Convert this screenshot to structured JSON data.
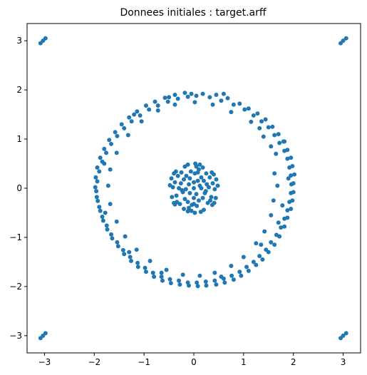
{
  "chart_data": {
    "type": "scatter",
    "title": "Donnees initiales : target.arff",
    "xlabel": "",
    "ylabel": "",
    "xlim": [
      -3.35,
      3.35
    ],
    "ylim": [
      -3.35,
      3.35
    ],
    "xticks": [
      -3,
      -2,
      -1,
      0,
      1,
      2,
      3
    ],
    "yticks": [
      -3,
      -2,
      -1,
      0,
      1,
      2,
      3
    ],
    "tick_labels": {
      "x": [
        "−3",
        "−2",
        "−1",
        "0",
        "1",
        "2",
        "3"
      ],
      "y": [
        "−3",
        "−2",
        "−1",
        "0",
        "1",
        "2",
        "3"
      ]
    },
    "grid": false,
    "legend": "none",
    "marker_color": "#1f77b4",
    "series": [
      {
        "points": [
          [
            -3.08,
            2.95
          ],
          [
            -3.03,
            3.0
          ],
          [
            -2.98,
            3.05
          ],
          [
            2.95,
            2.95
          ],
          [
            3.0,
            3.0
          ],
          [
            3.06,
            3.05
          ],
          [
            -3.08,
            -3.05
          ],
          [
            -3.03,
            -3.0
          ],
          [
            -2.98,
            -2.95
          ],
          [
            2.95,
            -3.05
          ],
          [
            3.0,
            -3.0
          ],
          [
            3.06,
            -2.95
          ],
          [
            -0.05,
            1.92
          ],
          [
            0.05,
            1.88
          ],
          [
            0.18,
            1.92
          ],
          [
            0.32,
            1.85
          ],
          [
            0.45,
            1.9
          ],
          [
            0.55,
            1.78
          ],
          [
            0.68,
            1.83
          ],
          [
            0.8,
            1.7
          ],
          [
            0.92,
            1.72
          ],
          [
            1.02,
            1.6
          ],
          [
            1.1,
            1.62
          ],
          [
            1.2,
            1.48
          ],
          [
            1.28,
            1.52
          ],
          [
            1.36,
            1.36
          ],
          [
            1.44,
            1.4
          ],
          [
            1.5,
            1.24
          ],
          [
            1.58,
            1.25
          ],
          [
            1.62,
            1.08
          ],
          [
            1.7,
            1.1
          ],
          [
            1.72,
            0.92
          ],
          [
            1.8,
            0.95
          ],
          [
            1.82,
            0.76
          ],
          [
            1.88,
            0.78
          ],
          [
            1.88,
            0.6
          ],
          [
            1.95,
            0.62
          ],
          [
            1.92,
            0.42
          ],
          [
            1.98,
            0.45
          ],
          [
            1.95,
            0.26
          ],
          [
            2.02,
            0.28
          ],
          [
            1.96,
            0.08
          ],
          [
            2.0,
            0.1
          ],
          [
            1.95,
            -0.1
          ],
          [
            2.0,
            -0.08
          ],
          [
            1.92,
            -0.28
          ],
          [
            1.98,
            -0.25
          ],
          [
            1.88,
            -0.45
          ],
          [
            1.95,
            -0.42
          ],
          [
            1.82,
            -0.62
          ],
          [
            1.88,
            -0.6
          ],
          [
            1.75,
            -0.8
          ],
          [
            1.82,
            -0.78
          ],
          [
            1.66,
            -0.95
          ],
          [
            1.72,
            -0.98
          ],
          [
            1.55,
            -1.1
          ],
          [
            1.62,
            -1.15
          ],
          [
            1.45,
            -1.25
          ],
          [
            1.5,
            -1.3
          ],
          [
            1.32,
            -1.38
          ],
          [
            1.38,
            -1.45
          ],
          [
            1.2,
            -1.5
          ],
          [
            1.25,
            -1.56
          ],
          [
            1.06,
            -1.6
          ],
          [
            1.1,
            -1.68
          ],
          [
            0.92,
            -1.7
          ],
          [
            0.95,
            -1.78
          ],
          [
            0.76,
            -1.78
          ],
          [
            0.8,
            -1.86
          ],
          [
            0.6,
            -1.84
          ],
          [
            0.62,
            -1.92
          ],
          [
            0.42,
            -1.88
          ],
          [
            0.45,
            -1.96
          ],
          [
            0.24,
            -1.9
          ],
          [
            0.25,
            -1.98
          ],
          [
            0.06,
            -1.92
          ],
          [
            0.08,
            -1.99
          ],
          [
            -0.12,
            -1.92
          ],
          [
            -0.1,
            -1.98
          ],
          [
            -0.3,
            -1.88
          ],
          [
            -0.28,
            -1.96
          ],
          [
            -0.48,
            -1.85
          ],
          [
            -0.46,
            -1.93
          ],
          [
            -0.65,
            -1.8
          ],
          [
            -0.63,
            -1.88
          ],
          [
            -0.82,
            -1.72
          ],
          [
            -0.8,
            -1.8
          ],
          [
            -0.98,
            -1.62
          ],
          [
            -0.96,
            -1.7
          ],
          [
            -1.13,
            -1.52
          ],
          [
            -1.12,
            -1.6
          ],
          [
            -1.28,
            -1.4
          ],
          [
            -1.26,
            -1.48
          ],
          [
            -1.42,
            -1.26
          ],
          [
            -1.4,
            -1.34
          ],
          [
            -1.54,
            -1.1
          ],
          [
            -1.52,
            -1.18
          ],
          [
            -1.66,
            -0.94
          ],
          [
            -1.64,
            -1.02
          ],
          [
            -1.75,
            -0.76
          ],
          [
            -1.74,
            -0.84
          ],
          [
            -1.84,
            -0.58
          ],
          [
            -1.82,
            -0.66
          ],
          [
            -1.9,
            -0.38
          ],
          [
            -1.88,
            -0.46
          ],
          [
            -1.95,
            -0.18
          ],
          [
            -1.93,
            -0.26
          ],
          [
            -1.98,
            0.02
          ],
          [
            -1.96,
            -0.06
          ],
          [
            -1.97,
            0.22
          ],
          [
            -1.94,
            0.14
          ],
          [
            -1.94,
            0.42
          ],
          [
            -1.9,
            0.34
          ],
          [
            -1.88,
            0.62
          ],
          [
            -1.84,
            0.54
          ],
          [
            -1.8,
            0.8
          ],
          [
            -1.76,
            0.72
          ],
          [
            -1.7,
            0.98
          ],
          [
            -1.66,
            0.9
          ],
          [
            -1.58,
            1.14
          ],
          [
            -1.54,
            1.06
          ],
          [
            -1.45,
            1.3
          ],
          [
            -1.4,
            1.22
          ],
          [
            -1.3,
            1.44
          ],
          [
            -1.25,
            1.36
          ],
          [
            -1.14,
            1.56
          ],
          [
            -1.08,
            1.48
          ],
          [
            -0.96,
            1.68
          ],
          [
            -0.9,
            1.6
          ],
          [
            -0.78,
            1.76
          ],
          [
            -0.72,
            1.68
          ],
          [
            -0.58,
            1.84
          ],
          [
            -0.52,
            1.76
          ],
          [
            -0.38,
            1.9
          ],
          [
            -0.32,
            1.82
          ],
          [
            -0.18,
            1.94
          ],
          [
            -0.12,
            1.86
          ],
          [
            1.15,
            1.35
          ],
          [
            1.4,
            1.05
          ],
          [
            1.55,
            0.85
          ],
          [
            1.65,
            0.7
          ],
          [
            1.62,
            0.3
          ],
          [
            1.68,
            0.05
          ],
          [
            1.6,
            -0.25
          ],
          [
            1.55,
            -0.55
          ],
          [
            1.42,
            -0.88
          ],
          [
            1.25,
            -1.12
          ],
          [
            1.0,
            -1.4
          ],
          [
            0.75,
            -1.58
          ],
          [
            0.42,
            -1.72
          ],
          [
            0.12,
            -1.78
          ],
          [
            -0.22,
            -1.76
          ],
          [
            -0.55,
            -1.66
          ],
          [
            -0.88,
            -1.48
          ],
          [
            -1.15,
            -1.25
          ],
          [
            -1.38,
            -0.98
          ],
          [
            -1.55,
            -0.68
          ],
          [
            -1.68,
            -0.32
          ],
          [
            -1.72,
            0.05
          ],
          [
            -1.68,
            0.38
          ],
          [
            -1.55,
            0.72
          ],
          [
            -1.32,
            1.08
          ],
          [
            -1.05,
            1.36
          ],
          [
            -0.72,
            1.58
          ],
          [
            -0.38,
            1.7
          ],
          [
            0.02,
            1.75
          ],
          [
            0.38,
            1.7
          ],
          [
            0.75,
            1.55
          ],
          [
            1.32,
            1.22
          ],
          [
            1.82,
            0.95
          ],
          [
            1.9,
            0.2
          ],
          [
            1.78,
            -0.35
          ],
          [
            1.7,
            -0.7
          ],
          [
            1.35,
            -1.15
          ],
          [
            0.55,
            -1.8
          ],
          [
            -0.65,
            -1.72
          ],
          [
            -1.3,
            -1.3
          ],
          [
            -1.78,
            -0.5
          ],
          [
            -1.8,
            0.5
          ],
          [
            -1.2,
            1.5
          ],
          [
            -0.5,
            1.85
          ],
          [
            0.6,
            1.92
          ],
          [
            0.0,
            0.0
          ],
          [
            0.12,
            0.05
          ],
          [
            -0.1,
            0.08
          ],
          [
            0.05,
            -0.12
          ],
          [
            -0.08,
            -0.1
          ],
          [
            0.2,
            0.15
          ],
          [
            -0.2,
            0.18
          ],
          [
            0.18,
            -0.2
          ],
          [
            -0.18,
            -0.22
          ],
          [
            0.3,
            0.02
          ],
          [
            -0.3,
            0.0
          ],
          [
            0.02,
            0.3
          ],
          [
            0.0,
            -0.32
          ],
          [
            0.38,
            0.1
          ],
          [
            -0.38,
            0.12
          ],
          [
            0.1,
            0.38
          ],
          [
            -0.1,
            -0.4
          ],
          [
            0.35,
            -0.18
          ],
          [
            -0.35,
            -0.15
          ],
          [
            0.25,
            0.3
          ],
          [
            -0.25,
            0.32
          ],
          [
            0.28,
            -0.3
          ],
          [
            -0.28,
            -0.32
          ],
          [
            0.42,
            -0.02
          ],
          [
            -0.42,
            0.02
          ],
          [
            0.05,
            0.44
          ],
          [
            -0.05,
            -0.46
          ],
          [
            0.15,
            0.22
          ],
          [
            -0.15,
            0.25
          ],
          [
            0.22,
            -0.1
          ],
          [
            -0.22,
            -0.08
          ],
          [
            0.08,
            0.15
          ],
          [
            -0.08,
            0.2
          ],
          [
            0.1,
            -0.25
          ],
          [
            -0.12,
            -0.28
          ],
          [
            0.32,
            0.22
          ],
          [
            -0.32,
            0.25
          ],
          [
            0.33,
            -0.25
          ],
          [
            -0.34,
            -0.28
          ],
          [
            0.45,
            0.18
          ],
          [
            -0.45,
            0.2
          ],
          [
            0.44,
            -0.2
          ],
          [
            -0.44,
            -0.18
          ],
          [
            0.18,
            0.42
          ],
          [
            -0.18,
            0.44
          ],
          [
            0.2,
            -0.44
          ],
          [
            -0.2,
            -0.42
          ],
          [
            0.0,
            0.12
          ],
          [
            0.0,
            -0.2
          ],
          [
            0.15,
            0.0
          ],
          [
            -0.16,
            -0.02
          ],
          [
            0.26,
            0.08
          ],
          [
            -0.26,
            0.1
          ],
          [
            0.24,
            -0.06
          ],
          [
            -0.24,
            -0.04
          ],
          [
            0.08,
            0.32
          ],
          [
            -0.06,
            0.34
          ],
          [
            0.06,
            -0.36
          ],
          [
            -0.04,
            -0.34
          ],
          [
            0.48,
            0.05
          ],
          [
            -0.48,
            0.06
          ],
          [
            0.03,
            0.5
          ],
          [
            0.02,
            -0.5
          ],
          [
            0.36,
            0.32
          ],
          [
            -0.36,
            0.34
          ],
          [
            0.37,
            -0.34
          ],
          [
            -0.38,
            -0.33
          ],
          [
            0.12,
            0.48
          ],
          [
            -0.12,
            0.48
          ],
          [
            0.14,
            -0.48
          ],
          [
            -0.12,
            -0.47
          ],
          [
            0.4,
            0.28
          ],
          [
            -0.4,
            0.3
          ],
          [
            0.41,
            -0.3
          ],
          [
            -0.4,
            -0.3
          ]
        ]
      }
    ]
  }
}
